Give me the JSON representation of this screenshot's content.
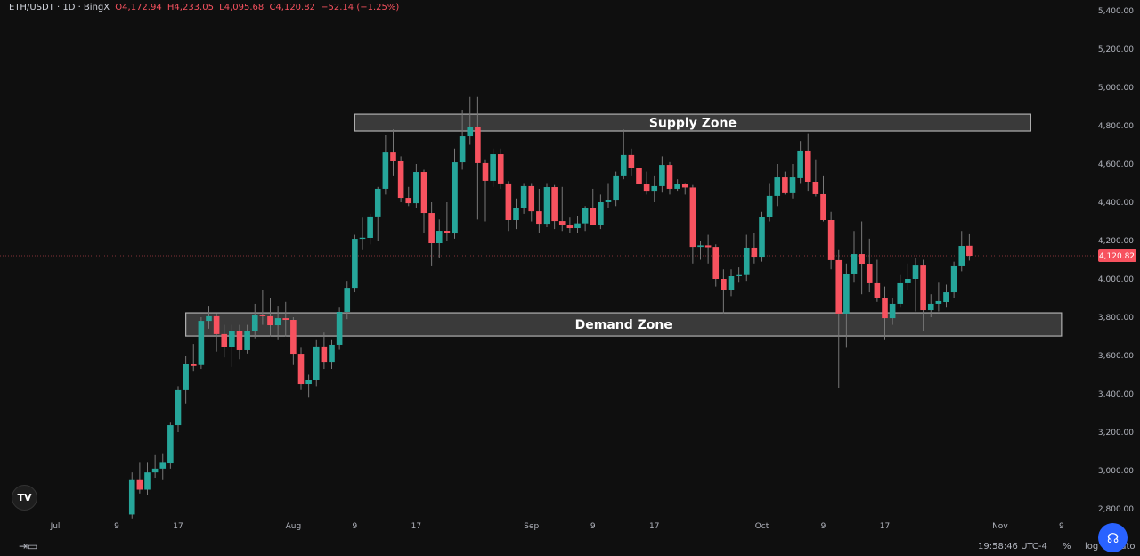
{
  "header": {
    "symbol": "ETH/USDT · 1D · BingX",
    "open": "O4,172.94",
    "high": "H4,233.05",
    "low": "L4,095.68",
    "close": "C4,120.82",
    "change": "−52.14 (−1.25%)"
  },
  "bottom_bar": {
    "time": "19:58:46 UTC-4",
    "percent_label": "%",
    "log_label": "log",
    "auto_label": "auto",
    "date_range_icon": "calendar-range-icon",
    "help_icon": "headset-icon"
  },
  "logo_text": "TV",
  "colors": {
    "up": "#26a69a",
    "down": "#f7525f",
    "background": "#0f0f0f",
    "zone_fill": "#4a4a4a",
    "zone_border": "#b0b0b0",
    "accent": "#2962ff"
  },
  "chart_data": {
    "type": "candlestick",
    "ylim": [
      2760,
      5440
    ],
    "y_ticks": [
      "5,400.00",
      "5,200.00",
      "5,000.00",
      "4,800.00",
      "4,600.00",
      "4,400.00",
      "4,200.00",
      "4,000.00",
      "3,800.00",
      "3,600.00",
      "3,400.00",
      "3,200.00",
      "3,000.00",
      "2,800.00"
    ],
    "x_ticks": [
      {
        "label": "Jul",
        "date": "Jul 1"
      },
      {
        "label": "9",
        "date": "Jul 9"
      },
      {
        "label": "17",
        "date": "Jul 17"
      },
      {
        "label": "Aug",
        "date": "Aug 1"
      },
      {
        "label": "9",
        "date": "Aug 9"
      },
      {
        "label": "17",
        "date": "Aug 17"
      },
      {
        "label": "Sep",
        "date": "Sep 1"
      },
      {
        "label": "9",
        "date": "Sep 9"
      },
      {
        "label": "17",
        "date": "Sep 17"
      },
      {
        "label": "Oct",
        "date": "Oct 1"
      },
      {
        "label": "9",
        "date": "Oct 9"
      },
      {
        "label": "17",
        "date": "Oct 17"
      },
      {
        "label": "Nov",
        "date": "Nov 1"
      },
      {
        "label": "9",
        "date": "Nov 9"
      }
    ],
    "last_price": 4120.82,
    "last_price_label": "4,120.82",
    "zones": [
      {
        "label": "Supply Zone",
        "top": 4860,
        "bottom": 4772,
        "start": "Aug 9",
        "end": "Nov 5"
      },
      {
        "label": "Demand Zone",
        "top": 3823,
        "bottom": 3702,
        "start": "Jul 18",
        "end": "Nov 9"
      }
    ],
    "candles_format": [
      "date",
      "open",
      "high",
      "low",
      "close"
    ],
    "candles": [
      [
        "Jul 11",
        2770,
        2990,
        2750,
        2950
      ],
      [
        "Jul 12",
        2950,
        3040,
        2880,
        2900
      ],
      [
        "Jul 13",
        2900,
        3040,
        2870,
        2990
      ],
      [
        "Jul 14",
        2990,
        3080,
        2960,
        3010
      ],
      [
        "Jul 15",
        3010,
        3090,
        2950,
        3040
      ],
      [
        "Jul 16",
        3037,
        3250,
        3010,
        3237
      ],
      [
        "Jul 17",
        3237,
        3440,
        3200,
        3419
      ],
      [
        "Jul 18",
        3419,
        3600,
        3350,
        3558
      ],
      [
        "Jul 19",
        3555,
        3660,
        3520,
        3545
      ],
      [
        "Jul 20",
        3550,
        3800,
        3530,
        3781
      ],
      [
        "Jul 21",
        3781,
        3860,
        3740,
        3805
      ],
      [
        "Jul 22",
        3805,
        3820,
        3620,
        3712
      ],
      [
        "Jul 23",
        3712,
        3760,
        3590,
        3642
      ],
      [
        "Jul 24",
        3642,
        3760,
        3540,
        3726
      ],
      [
        "Jul 25",
        3726,
        3760,
        3580,
        3628
      ],
      [
        "Jul 26",
        3628,
        3760,
        3610,
        3730
      ],
      [
        "Jul 27",
        3730,
        3870,
        3690,
        3814
      ],
      [
        "Jul 28",
        3814,
        3940,
        3760,
        3805
      ],
      [
        "Jul 29",
        3805,
        3900,
        3700,
        3758
      ],
      [
        "Jul 30",
        3758,
        3860,
        3680,
        3795
      ],
      [
        "Jul 31",
        3795,
        3880,
        3700,
        3786
      ],
      [
        "Aug 1",
        3786,
        3800,
        3550,
        3609
      ],
      [
        "Aug 2",
        3609,
        3640,
        3420,
        3451
      ],
      [
        "Aug 3",
        3451,
        3500,
        3380,
        3470
      ],
      [
        "Aug 4",
        3470,
        3680,
        3440,
        3647
      ],
      [
        "Aug 5",
        3647,
        3720,
        3530,
        3567
      ],
      [
        "Aug 6",
        3567,
        3680,
        3530,
        3656
      ],
      [
        "Aug 7",
        3656,
        3850,
        3630,
        3828
      ],
      [
        "Aug 8",
        3828,
        3990,
        3790,
        3953
      ],
      [
        "Aug 9",
        3953,
        4230,
        3930,
        4209
      ],
      [
        "Aug 10",
        4209,
        4320,
        4150,
        4215
      ],
      [
        "Aug 11",
        4214,
        4340,
        4180,
        4326
      ],
      [
        "Aug 12",
        4326,
        4480,
        4200,
        4470
      ],
      [
        "Aug 13",
        4470,
        4750,
        4440,
        4660
      ],
      [
        "Aug 14",
        4660,
        4780,
        4540,
        4614
      ],
      [
        "Aug 15",
        4614,
        4640,
        4400,
        4423
      ],
      [
        "Aug 16",
        4423,
        4480,
        4380,
        4395
      ],
      [
        "Aug 17",
        4395,
        4600,
        4370,
        4558
      ],
      [
        "Aug 18",
        4558,
        4570,
        4240,
        4344
      ],
      [
        "Aug 19",
        4344,
        4400,
        4070,
        4186
      ],
      [
        "Aug 20",
        4186,
        4310,
        4110,
        4251
      ],
      [
        "Aug 21",
        4251,
        4400,
        4200,
        4240
      ],
      [
        "Aug 22",
        4237,
        4680,
        4210,
        4609
      ],
      [
        "Aug 23",
        4609,
        4880,
        4570,
        4744
      ],
      [
        "Aug 24",
        4744,
        4950,
        4700,
        4791
      ],
      [
        "Aug 25",
        4791,
        4950,
        4310,
        4605
      ],
      [
        "Aug 26",
        4605,
        4620,
        4300,
        4512
      ],
      [
        "Aug 27",
        4512,
        4680,
        4480,
        4651
      ],
      [
        "Aug 28",
        4651,
        4680,
        4470,
        4498
      ],
      [
        "Aug 29",
        4498,
        4510,
        4250,
        4307
      ],
      [
        "Aug 30",
        4307,
        4420,
        4260,
        4372
      ],
      [
        "Aug 31",
        4372,
        4500,
        4340,
        4484
      ],
      [
        "Sep 1",
        4484,
        4500,
        4300,
        4353
      ],
      [
        "Sep 2",
        4353,
        4470,
        4240,
        4288
      ],
      [
        "Sep 3",
        4288,
        4500,
        4270,
        4479
      ],
      [
        "Sep 4",
        4479,
        4490,
        4260,
        4302
      ],
      [
        "Sep 5",
        4302,
        4480,
        4250,
        4279
      ],
      [
        "Sep 6",
        4279,
        4320,
        4240,
        4265
      ],
      [
        "Sep 7",
        4265,
        4330,
        4240,
        4290
      ],
      [
        "Sep 8",
        4290,
        4380,
        4250,
        4372
      ],
      [
        "Sep 9",
        4372,
        4470,
        4280,
        4279
      ],
      [
        "Sep 10",
        4279,
        4440,
        4260,
        4400
      ],
      [
        "Sep 11",
        4400,
        4500,
        4370,
        4412
      ],
      [
        "Sep 12",
        4409,
        4560,
        4380,
        4540
      ],
      [
        "Sep 13",
        4540,
        4780,
        4520,
        4647
      ],
      [
        "Sep 14",
        4647,
        4680,
        4540,
        4581
      ],
      [
        "Sep 15",
        4581,
        4620,
        4440,
        4493
      ],
      [
        "Sep 16",
        4493,
        4560,
        4440,
        4460
      ],
      [
        "Sep 17",
        4460,
        4540,
        4400,
        4484
      ],
      [
        "Sep 18",
        4484,
        4640,
        4450,
        4595
      ],
      [
        "Sep 19",
        4595,
        4610,
        4440,
        4470
      ],
      [
        "Sep 20",
        4470,
        4520,
        4460,
        4493
      ],
      [
        "Sep 21",
        4493,
        4500,
        4440,
        4477
      ],
      [
        "Sep 22",
        4477,
        4490,
        4080,
        4167
      ],
      [
        "Sep 23",
        4167,
        4200,
        4100,
        4175
      ],
      [
        "Sep 24",
        4175,
        4230,
        4080,
        4165
      ],
      [
        "Sep 25",
        4167,
        4180,
        3960,
        4000
      ],
      [
        "Sep 26",
        4000,
        4050,
        3820,
        3944
      ],
      [
        "Sep 27",
        3944,
        4050,
        3910,
        4014
      ],
      [
        "Sep 28",
        4014,
        4060,
        3980,
        4020
      ],
      [
        "Sep 29",
        4020,
        4230,
        3990,
        4163
      ],
      [
        "Sep 30",
        4163,
        4240,
        4080,
        4116
      ],
      [
        "Oct 1",
        4116,
        4350,
        4090,
        4321
      ],
      [
        "Oct 2",
        4321,
        4500,
        4300,
        4433
      ],
      [
        "Oct 3",
        4433,
        4600,
        4380,
        4530
      ],
      [
        "Oct 4",
        4530,
        4560,
        4440,
        4447
      ],
      [
        "Oct 5",
        4447,
        4600,
        4420,
        4530
      ],
      [
        "Oct 6",
        4526,
        4720,
        4500,
        4670
      ],
      [
        "Oct 7",
        4670,
        4760,
        4460,
        4507
      ],
      [
        "Oct 8",
        4507,
        4620,
        4430,
        4442
      ],
      [
        "Oct 9",
        4442,
        4540,
        4300,
        4307
      ],
      [
        "Oct 10",
        4307,
        4350,
        4050,
        4098
      ],
      [
        "Oct 11",
        4098,
        4150,
        3430,
        3819
      ],
      [
        "Oct 12",
        3819,
        4080,
        3640,
        4028
      ],
      [
        "Oct 13",
        4028,
        4250,
        3980,
        4130
      ],
      [
        "Oct 14",
        4130,
        4300,
        3920,
        4079
      ],
      [
        "Oct 15",
        4079,
        4210,
        3930,
        3977
      ],
      [
        "Oct 16",
        3977,
        4100,
        3880,
        3902
      ],
      [
        "Oct 17",
        3902,
        3960,
        3680,
        3795
      ],
      [
        "Oct 18",
        3795,
        3900,
        3760,
        3870
      ],
      [
        "Oct 19",
        3870,
        4020,
        3850,
        3977
      ],
      [
        "Oct 20",
        3977,
        4080,
        3940,
        4000
      ],
      [
        "Oct 21",
        4000,
        4110,
        3830,
        4074
      ],
      [
        "Oct 22",
        4074,
        4100,
        3730,
        3837
      ],
      [
        "Oct 23",
        3837,
        3920,
        3800,
        3870
      ],
      [
        "Oct 24",
        3870,
        3980,
        3830,
        3884
      ],
      [
        "Oct 25",
        3879,
        3970,
        3850,
        3930
      ],
      [
        "Oct 26",
        3930,
        4090,
        3900,
        4070
      ],
      [
        "Oct 27",
        4070,
        4250,
        4040,
        4172
      ],
      [
        "Oct 28",
        4172.94,
        4233.05,
        4095.68,
        4120.82
      ]
    ]
  }
}
